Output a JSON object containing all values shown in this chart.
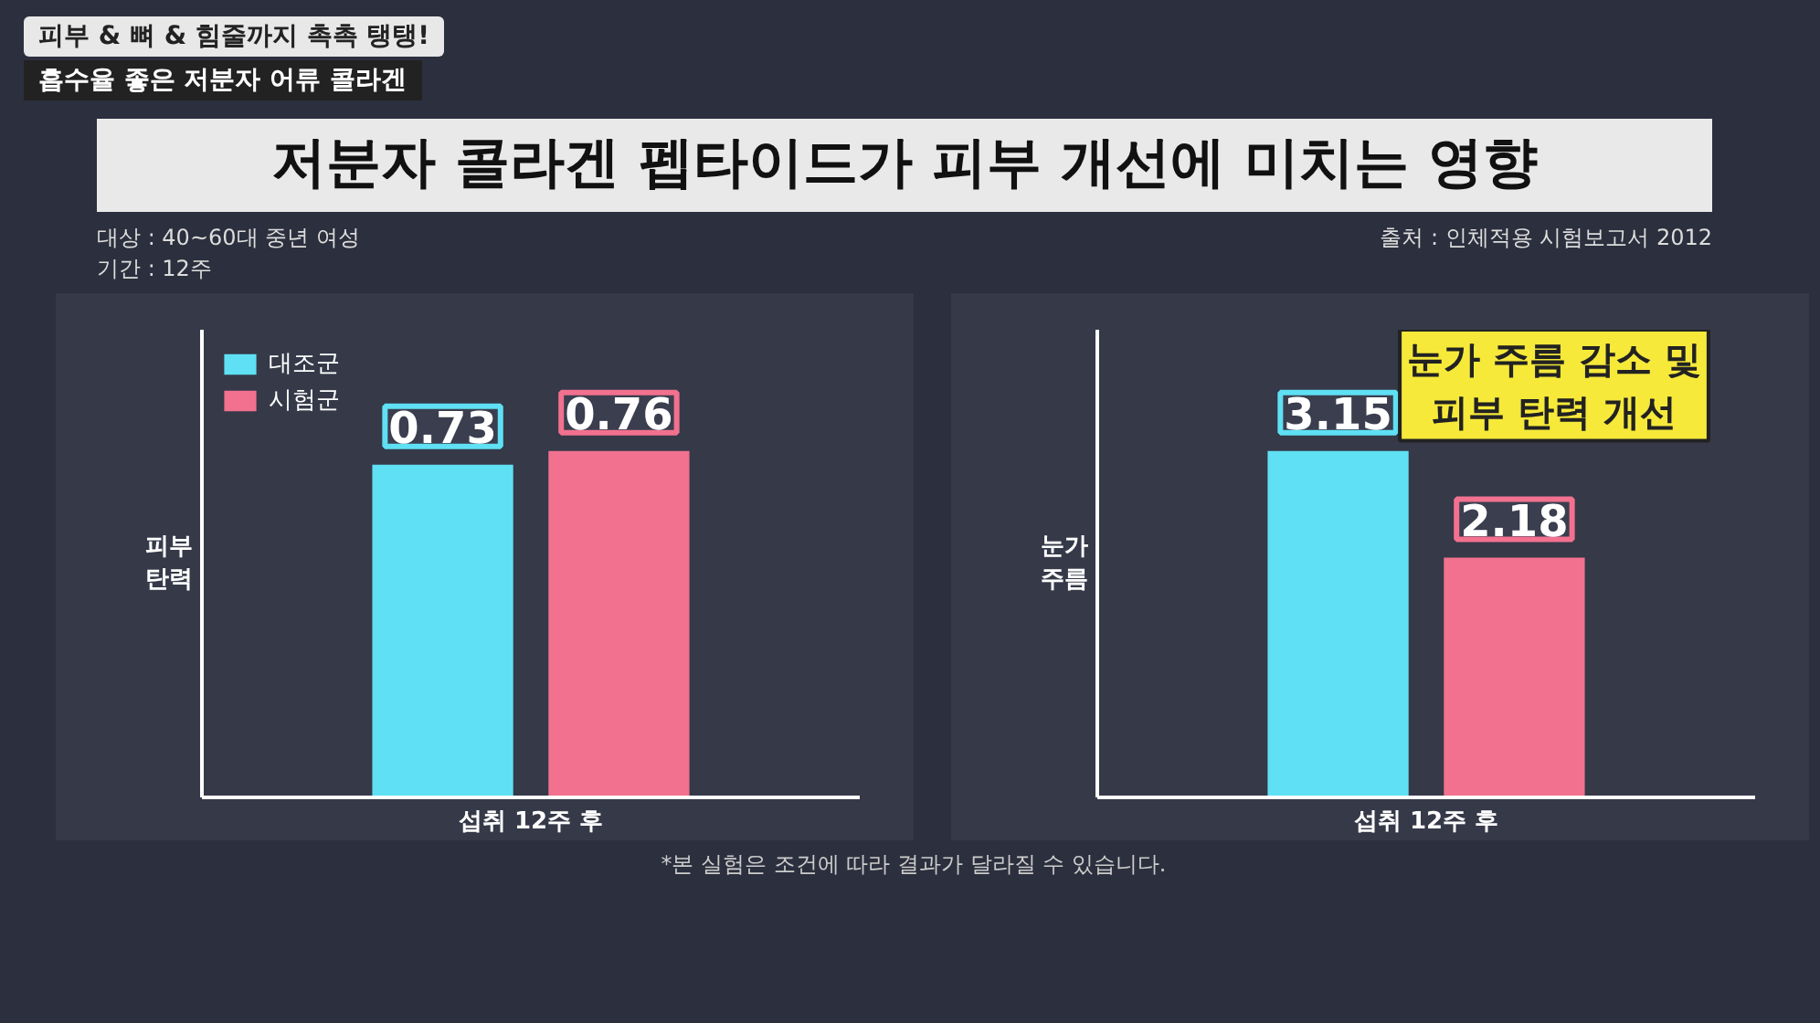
{
  "chart_data": [
    {
      "type": "bar",
      "title": "저분자 콜라겐 펩타이드가 피부 개선에 미치는 영향",
      "categories": [
        null
      ],
      "xlabel": "섭취 12주 후",
      "ylabel": "피부\n탄력",
      "series": [
        {
          "name": "대조군",
          "color": "#5fe0f4",
          "values": [
            0.73
          ]
        },
        {
          "name": "시험군",
          "color": "#f2718f",
          "values": [
            0.76
          ]
        }
      ],
      "data_labels": true,
      "legend": "top left",
      "grid": false,
      "annotations": [
        "피부 & 뼈 & 힘줄까지 촉촉 탱탱!",
        "흡수율 좋은 저분자 어류 콜라겐",
        "대상 : 40~60대 중년 여성",
        "기간 : 12주",
        "출처 : 인체적용 시험보고서 2012",
        "*본 실험은 조건에 따라 결과가 달라질 수 있습니다."
      ]
    },
    {
      "type": "bar",
      "categories": [
        null
      ],
      "xlabel": "섭취 12주 후",
      "ylabel": "눈가\n주름",
      "series": [
        {
          "color": "#5fe0f4",
          "values": [
            3.15
          ]
        },
        {
          "color": "#f2718f",
          "values": [
            2.18
          ]
        }
      ],
      "data_labels": true,
      "grid": false,
      "annotations": [
        "눈가 주름 감소 및\n피부 탄력 개선"
      ]
    }
  ]
}
